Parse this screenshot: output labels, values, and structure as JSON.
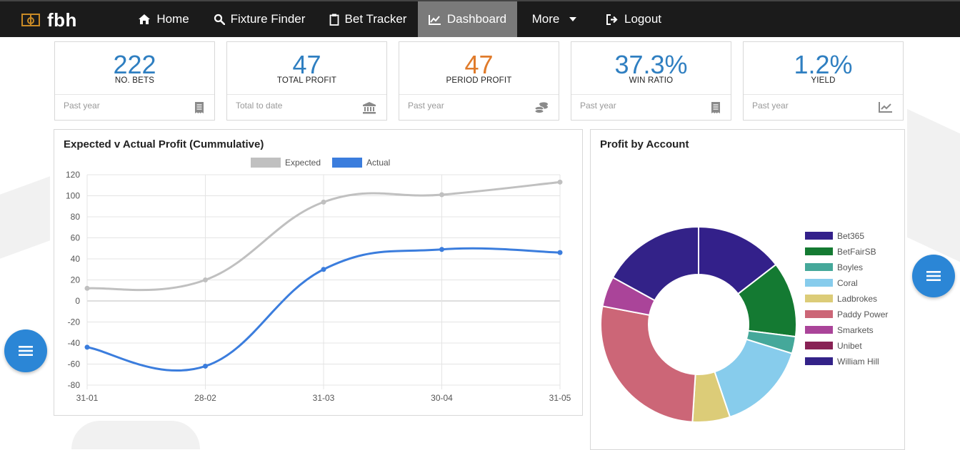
{
  "nav": {
    "brand": "fbh",
    "items": [
      {
        "label": "Home",
        "icon": "home-icon"
      },
      {
        "label": "Fixture Finder",
        "icon": "search-icon"
      },
      {
        "label": "Bet Tracker",
        "icon": "clipboard-icon"
      },
      {
        "label": "Dashboard",
        "icon": "chart-icon",
        "active": true
      },
      {
        "label": "More",
        "icon": "caret-down-icon"
      },
      {
        "label": "Logout",
        "icon": "sign-out-icon"
      }
    ]
  },
  "stats": [
    {
      "value": "222",
      "label": "NO. BETS",
      "footer": "Past year",
      "color": "#2f7fc1",
      "icon": "receipt-icon"
    },
    {
      "value": "47",
      "label": "TOTAL PROFIT",
      "footer": "Total to date",
      "color": "#2f7fc1",
      "icon": "bank-icon"
    },
    {
      "value": "47",
      "label": "PERIOD PROFIT",
      "footer": "Past year",
      "color": "#e07b2b",
      "icon": "coins-icon"
    },
    {
      "value": "37.3%",
      "label": "WIN RATIO",
      "footer": "Past year",
      "color": "#2f7fc1",
      "icon": "receipt-icon"
    },
    {
      "value": "1.2%",
      "label": "YIELD",
      "footer": "Past year",
      "color": "#2f7fc1",
      "icon": "trend-icon"
    }
  ],
  "line_panel": {
    "title": "Expected v Actual Profit (Cummulative)"
  },
  "donut_panel": {
    "title": "Profit by Account"
  },
  "chart_data": [
    {
      "type": "line",
      "title": "Expected v Actual Profit (Cummulative)",
      "categories": [
        "31-01",
        "28-02",
        "31-03",
        "30-04",
        "31-05"
      ],
      "series": [
        {
          "name": "Expected",
          "values": [
            12,
            20,
            94,
            101,
            113
          ],
          "color": "#c0c0c0"
        },
        {
          "name": "Actual",
          "values": [
            -44,
            -62,
            30,
            49,
            46
          ],
          "color": "#3b7ddd"
        }
      ],
      "ylim": [
        -80,
        120
      ],
      "yticks": [
        120,
        100,
        80,
        60,
        40,
        20,
        0,
        -20,
        -40,
        -60,
        -80
      ],
      "legend": "top"
    },
    {
      "type": "pie",
      "title": "Profit by Account",
      "labels": [
        "Bet365",
        "BetFairSB",
        "Boyles",
        "Coral",
        "Ladbrokes",
        "Paddy Power",
        "Smarkets",
        "Unibet",
        "William Hill"
      ],
      "values": [
        14.5,
        12.5,
        2.8,
        15.0,
        6.2,
        27.0,
        5.0,
        0.0,
        17.0
      ],
      "colors": [
        "#33208a",
        "#147a32",
        "#45a89a",
        "#87ccec",
        "#dccc78",
        "#cc6677",
        "#aa4499",
        "#882255",
        "#332288"
      ],
      "legend": "right"
    }
  ]
}
